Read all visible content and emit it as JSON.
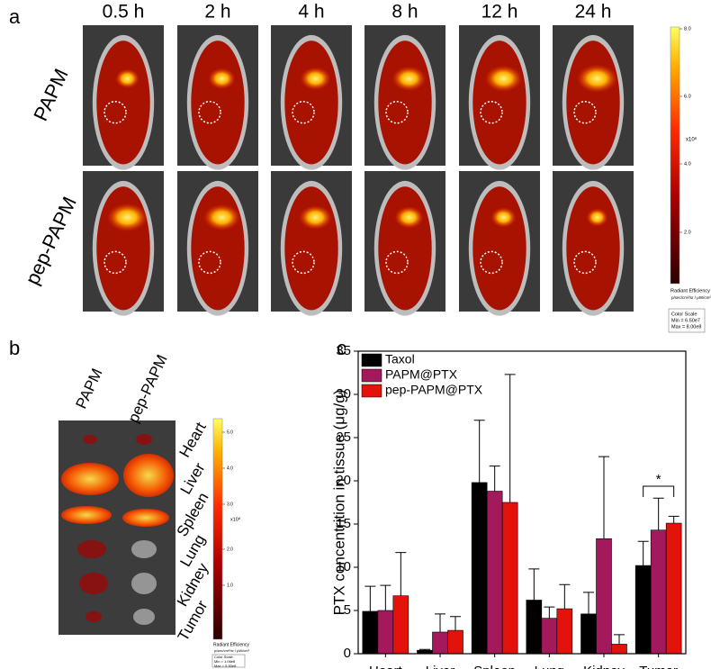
{
  "panel_a": {
    "label": "a",
    "times": [
      "0.5 h",
      "2 h",
      "4 h",
      "8 h",
      "12 h",
      "24 h"
    ],
    "rows": [
      "PAPM",
      "pep-PAPM"
    ],
    "colorbar": {
      "ticks": [
        "8.0",
        "6.0",
        "4.0",
        "2.0"
      ],
      "exponent": "x10⁸",
      "title": "Radiant Efficiency",
      "units": "p/sec/cm²/sr / μW/cm²",
      "scale_title": "Color Scale",
      "min": "Min = 6.50e7",
      "max": "Max = 8.00e8"
    }
  },
  "panel_b": {
    "label": "b",
    "columns": [
      "PAPM",
      "pep-PAPM"
    ],
    "organs": [
      "Heart",
      "Liver",
      "Spleen",
      "Lung",
      "Kidney",
      "Tumor"
    ],
    "colorbar": {
      "ticks": [
        "5.0",
        "4.0",
        "3.0",
        "2.0",
        "1.0"
      ],
      "exponent": "x10⁸",
      "title": "Radiant Efficiency",
      "units": "p/sec/cm²/sr / μW/cm²",
      "scale_title": "Color Scale",
      "min": "Min = 1.06e8",
      "max": "Max = 5.50e8"
    }
  },
  "chart_data": {
    "type": "bar",
    "panel_label": "c",
    "y_label": "PTX concentrition in tissue (μg/g)",
    "categories": [
      "Heart",
      "Liver",
      "Spleen",
      "Lung",
      "Kidney",
      "Tumor"
    ],
    "series": [
      {
        "name": "Taxol",
        "color": "#000000",
        "values": [
          4.9,
          0.4,
          19.8,
          6.2,
          4.6,
          10.2
        ],
        "errors": [
          2.9,
          0.1,
          7.2,
          3.6,
          2.5,
          2.8
        ]
      },
      {
        "name": "PAPM@PTX",
        "color": "#a3195b",
        "values": [
          5.0,
          2.5,
          18.8,
          4.1,
          13.3,
          14.3
        ],
        "errors": [
          2.9,
          2.1,
          2.9,
          1.3,
          9.5,
          3.7
        ]
      },
      {
        "name": "pep-PAPM@PTX",
        "color": "#e3120b",
        "values": [
          6.7,
          2.7,
          17.5,
          5.2,
          1.1,
          15.1
        ],
        "errors": [
          5.0,
          1.6,
          14.8,
          2.8,
          1.1,
          0.8
        ]
      }
    ],
    "ylim": [
      0,
      35
    ],
    "yticks": [
      0,
      5,
      10,
      15,
      20,
      25,
      30,
      35
    ],
    "legend": "upper-left",
    "annotation": "*"
  }
}
